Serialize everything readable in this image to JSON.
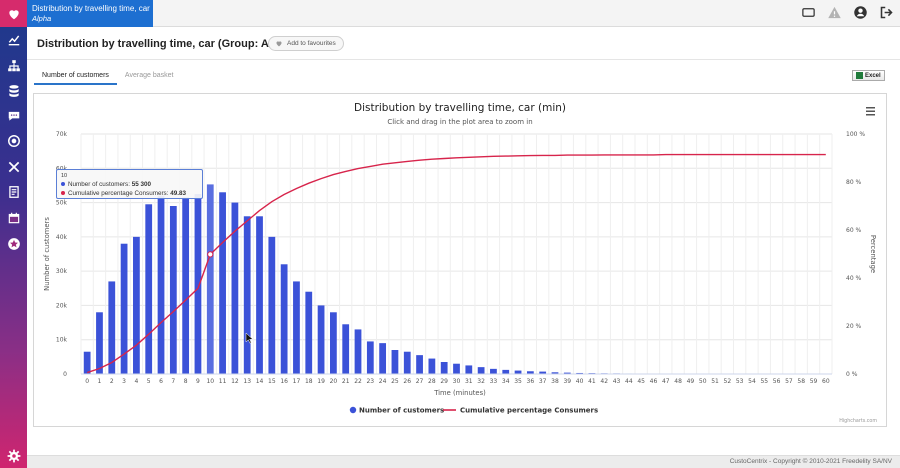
{
  "app": {
    "title_tab": {
      "title": "Distribution by travelling time, car",
      "subtitle": "Alpha"
    },
    "page_title": "Distribution by travelling time, car (Group: Alpha)",
    "favourites_label": "Add to favourites",
    "tabs": [
      {
        "label": "Number of customers",
        "active": true
      },
      {
        "label": "Average basket",
        "active": false
      }
    ],
    "excel_label": "Excel",
    "footer": "CustoCentrix - Copyright © 2010-2021 Freedelity SA/NV",
    "sidebar_icons": [
      "heart-icon",
      "dashboard-chart-icon",
      "hierarchy-icon",
      "database-icon",
      "chat-icon",
      "target-icon",
      "tools-icon",
      "report-icon",
      "calendar-icon",
      "star-icon",
      "settings-gear-icon"
    ],
    "topbar_icons": [
      "window-icon",
      "warning-icon",
      "user-icon",
      "logout-icon"
    ],
    "colors": {
      "accent": "#1d6fd1",
      "bars": "#3b52d8",
      "line": "#d7244b",
      "brand_pink": "#d62b6c"
    }
  },
  "tooltip": {
    "header": "10",
    "rows": [
      {
        "label": "Number of customers",
        "value": "55 300",
        "color": "#3b52d8"
      },
      {
        "label": "Cumulative percentage Consumers",
        "value": "49.83",
        "color": "#d7244b"
      }
    ]
  },
  "chart_data": {
    "type": "bar",
    "title": "Distribution by travelling time, car (min)",
    "subtitle": "Click and drag in the plot area to zoom in",
    "xlabel": "Time (minutes)",
    "ylabel": "Number of customers",
    "y2label": "Percentage",
    "categories": [
      "0",
      "1",
      "2",
      "3",
      "4",
      "5",
      "6",
      "7",
      "8",
      "9",
      "10",
      "11",
      "12",
      "13",
      "14",
      "15",
      "16",
      "17",
      "18",
      "19",
      "20",
      "21",
      "22",
      "23",
      "24",
      "25",
      "26",
      "27",
      "28",
      "29",
      "30",
      "31",
      "32",
      "33",
      "34",
      "35",
      "36",
      "37",
      "38",
      "39",
      "40",
      "41",
      "42",
      "43",
      "44",
      "45",
      "46",
      "47",
      "48",
      "49",
      "50",
      "51",
      "52",
      "53",
      "54",
      "55",
      "56",
      "57",
      "58",
      "59",
      "60"
    ],
    "ylim": [
      0,
      70000
    ],
    "y_ticks": [
      "0",
      "10k",
      "20k",
      "30k",
      "40k",
      "50k",
      "60k",
      "70k"
    ],
    "y2lim": [
      0,
      100
    ],
    "y2_ticks": [
      "0 %",
      "20 %",
      "40 %",
      "60 %",
      "80 %",
      "100 %"
    ],
    "grid": true,
    "legend_position": "bottom",
    "credit": "Highcharts.com",
    "series": [
      {
        "name": "Number of customers",
        "type": "bar",
        "axis": "left",
        "values": [
          6500,
          18000,
          27000,
          38000,
          40000,
          49500,
          52000,
          49000,
          51500,
          52500,
          55300,
          53000,
          50000,
          46000,
          46000,
          40000,
          32000,
          27000,
          24000,
          20000,
          18000,
          14500,
          13000,
          9500,
          9000,
          7000,
          6500,
          5500,
          4500,
          3500,
          3000,
          2500,
          2000,
          1500,
          1200,
          1000,
          800,
          700,
          500,
          400,
          300,
          250,
          200,
          180,
          150,
          120,
          100,
          90,
          80,
          70,
          60,
          50,
          40,
          35,
          30,
          25,
          20,
          15,
          12,
          10,
          8
        ]
      },
      {
        "name": "Cumulative percentage Consumers",
        "type": "line",
        "axis": "right",
        "values": [
          0.6,
          2.3,
          4.8,
          8.3,
          12.0,
          16.6,
          21.4,
          26.0,
          30.8,
          35.7,
          49.83,
          54.8,
          59.5,
          63.8,
          68.1,
          71.8,
          74.8,
          77.3,
          79.5,
          81.4,
          83.1,
          84.4,
          85.6,
          86.5,
          87.4,
          88.0,
          88.6,
          89.1,
          89.5,
          89.8,
          90.1,
          90.3,
          90.5,
          90.7,
          90.8,
          90.9,
          91.0,
          91.1,
          91.1,
          91.2,
          91.2,
          91.2,
          91.3,
          91.3,
          91.3,
          91.3,
          91.3,
          91.4,
          91.4,
          91.4,
          91.4,
          91.4,
          91.4,
          91.4,
          91.4,
          91.4,
          91.4,
          91.4,
          91.4,
          91.4,
          91.4
        ]
      }
    ]
  }
}
